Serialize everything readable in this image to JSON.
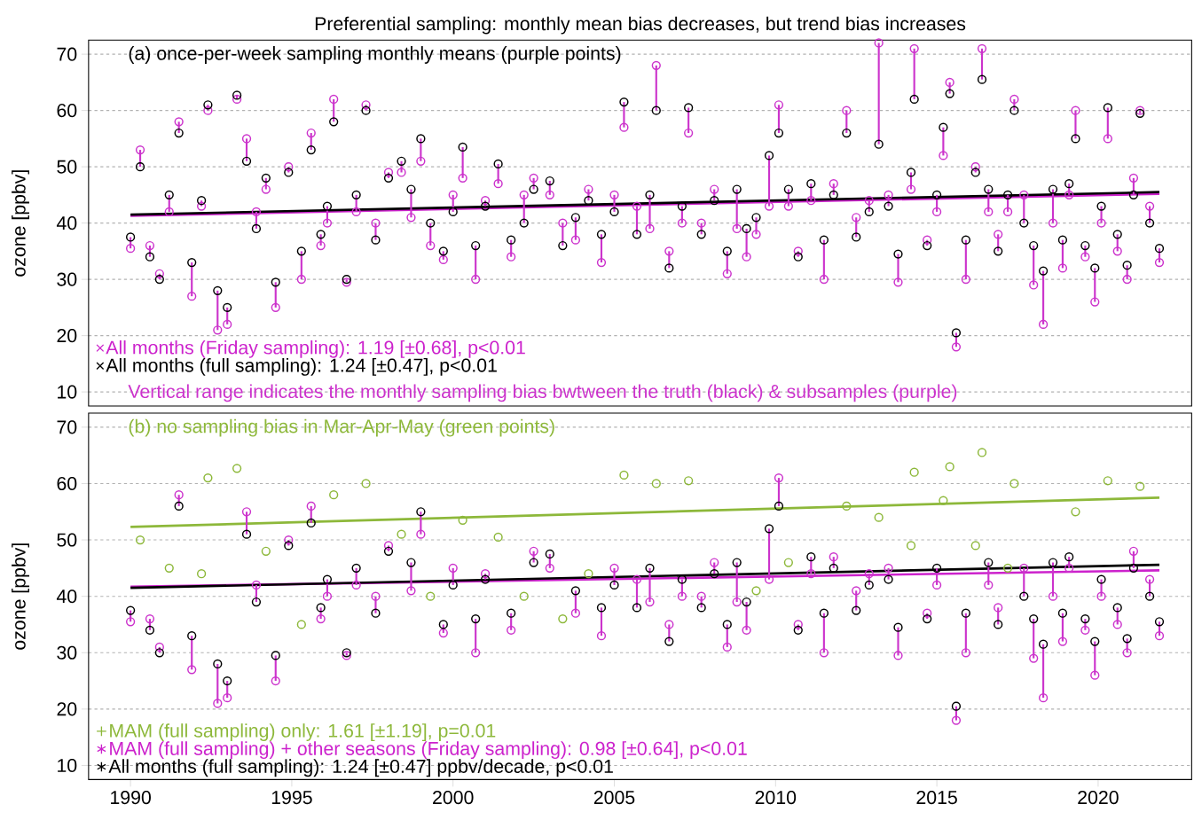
{
  "chart_data": [
    {
      "type": "scatter",
      "title": "Preferential sampling: monthly mean bias decreases, but trend bias increases",
      "subtitle": "(a) once-per-week sampling monthly means (purple points)",
      "ylabel": "ozone [ppbv]",
      "annotations": [
        "Vertical range indicates the monthly sampling bias bwtween the truth (black) & subsamples (purple)"
      ],
      "xlim": [
        1988.7,
        2022.9
      ],
      "ylim": [
        7.5,
        72.5
      ],
      "yticks": [
        10,
        20,
        30,
        40,
        50,
        60,
        70
      ],
      "tick_labels": "y",
      "grid": "y",
      "legend": "bottom left",
      "x": [
        1990.0,
        1990.3,
        1990.6,
        1990.9,
        1991.2,
        1991.5,
        1991.9,
        1992.2,
        1992.4,
        1992.7,
        1993.0,
        1993.3,
        1993.6,
        1993.9,
        1994.2,
        1994.5,
        1994.9,
        1995.3,
        1995.6,
        1995.9,
        1996.1,
        1996.3,
        1996.7,
        1997.0,
        1997.3,
        1997.6,
        1998.0,
        1998.4,
        1998.7,
        1999.0,
        1999.3,
        1999.7,
        2000.0,
        2000.3,
        2000.7,
        2001.0,
        2001.4,
        2001.8,
        2002.2,
        2002.5,
        2003.0,
        2003.4,
        2003.8,
        2004.2,
        2004.6,
        2005.0,
        2005.3,
        2005.7,
        2006.1,
        2006.3,
        2006.7,
        2007.1,
        2007.3,
        2007.7,
        2008.1,
        2008.5,
        2008.8,
        2009.1,
        2009.4,
        2009.8,
        2010.1,
        2010.4,
        2010.7,
        2011.1,
        2011.5,
        2011.8,
        2012.2,
        2012.5,
        2012.9,
        2013.2,
        2013.5,
        2013.8,
        2014.2,
        2014.3,
        2014.7,
        2015.0,
        2015.2,
        2015.4,
        2015.6,
        2015.9,
        2016.2,
        2016.4,
        2016.6,
        2016.9,
        2017.2,
        2017.4,
        2017.7,
        2018.0,
        2018.3,
        2018.6,
        2018.9,
        2019.1,
        2019.3,
        2019.6,
        2019.9,
        2020.1,
        2020.3,
        2020.6,
        2020.9,
        2021.1,
        2021.3,
        2021.6,
        2021.9
      ],
      "series": [
        {
          "marker": "circle",
          "color": "#cc33cc",
          "values": [
            35.5,
            53,
            36,
            31,
            42,
            58,
            27,
            43,
            60,
            21,
            22,
            62,
            55,
            42,
            46,
            25,
            50,
            30,
            56,
            36,
            40,
            62,
            29.5,
            42,
            61,
            40,
            49,
            49,
            41,
            51,
            36,
            33.5,
            45,
            48,
            30,
            44,
            47,
            34,
            45,
            48,
            45,
            40,
            37,
            46,
            33,
            45,
            57,
            43,
            39,
            68,
            35,
            40,
            56,
            40,
            46,
            31,
            39,
            34,
            38,
            43,
            61,
            43,
            35,
            44,
            30,
            47,
            60,
            41,
            44,
            72,
            45,
            29.5,
            46,
            71,
            37,
            42,
            52,
            65,
            18,
            30,
            50,
            71,
            42,
            38,
            42,
            62,
            45,
            29,
            22,
            40,
            32,
            45,
            60,
            34,
            26,
            40,
            55,
            35,
            30,
            48,
            60,
            43,
            33
          ],
          "errors": [
            [
              35.5,
              37.5
            ],
            [
              50,
              53
            ],
            [
              34,
              36
            ],
            [
              30,
              31
            ],
            [
              42,
              45
            ],
            [
              56,
              58
            ],
            [
              27,
              33
            ],
            [
              43,
              44
            ],
            [
              60,
              61
            ],
            [
              21,
              28
            ],
            [
              22,
              25
            ],
            [
              62,
              62.7
            ],
            [
              51,
              55
            ],
            [
              39,
              42
            ],
            [
              46,
              48
            ],
            [
              25,
              29.5
            ],
            [
              49,
              50
            ],
            [
              30,
              35
            ],
            [
              53,
              56
            ],
            [
              36,
              38
            ],
            [
              40,
              43
            ],
            [
              58,
              62
            ],
            [
              29.5,
              30
            ],
            [
              42,
              45
            ],
            [
              60,
              61
            ],
            [
              37,
              40
            ],
            [
              48,
              49
            ],
            [
              49,
              51
            ],
            [
              41,
              46
            ],
            [
              51,
              55
            ],
            [
              36,
              40
            ],
            [
              33.5,
              35
            ],
            [
              42,
              45
            ],
            [
              48,
              53.5
            ],
            [
              30,
              36
            ],
            [
              43,
              44
            ],
            [
              47,
              50.5
            ],
            [
              34,
              37
            ],
            [
              40,
              45
            ],
            [
              46,
              48
            ],
            [
              45,
              47.5
            ],
            [
              36,
              40
            ],
            [
              37,
              41
            ],
            [
              44,
              46
            ],
            [
              33,
              38
            ],
            [
              42,
              45
            ],
            [
              57,
              61.5
            ],
            [
              38,
              43
            ],
            [
              39,
              45
            ],
            [
              60,
              68
            ],
            [
              32,
              35
            ],
            [
              40,
              43
            ],
            [
              56,
              60.5
            ],
            [
              38,
              40
            ],
            [
              44,
              46
            ],
            [
              31,
              35
            ],
            [
              39,
              46
            ],
            [
              34,
              39
            ],
            [
              38,
              41
            ],
            [
              43,
              52
            ],
            [
              56,
              61
            ],
            [
              43,
              46
            ],
            [
              34,
              35
            ],
            [
              44,
              47
            ],
            [
              30,
              37
            ],
            [
              45,
              47
            ],
            [
              56,
              60
            ],
            [
              37.5,
              41
            ],
            [
              42,
              44
            ],
            [
              54,
              72
            ],
            [
              43,
              45
            ],
            [
              29.5,
              34.5
            ],
            [
              46,
              49
            ],
            [
              62,
              71
            ],
            [
              36,
              37
            ],
            [
              42,
              45
            ],
            [
              52,
              57
            ],
            [
              63,
              65
            ],
            [
              18,
              20.5
            ],
            [
              30,
              37
            ],
            [
              49,
              50
            ],
            [
              65.5,
              71
            ],
            [
              42,
              46
            ],
            [
              35,
              38
            ],
            [
              42,
              45
            ],
            [
              60,
              62
            ],
            [
              40,
              45
            ],
            [
              29,
              36
            ],
            [
              22,
              31.5
            ],
            [
              40,
              46
            ],
            [
              32,
              37
            ],
            [
              45,
              47
            ],
            [
              55,
              60
            ],
            [
              34,
              36
            ],
            [
              26,
              32
            ],
            [
              40,
              43
            ],
            [
              55,
              60.5
            ],
            [
              35,
              38
            ],
            [
              30,
              32.5
            ],
            [
              45,
              48
            ],
            [
              59.5,
              60
            ],
            [
              40,
              43
            ],
            [
              33,
              35.5
            ]
          ]
        },
        {
          "marker": "circle",
          "color": "#000000",
          "values": [
            37.5,
            50,
            34,
            30,
            45,
            56,
            33,
            44,
            61,
            28,
            25,
            62.7,
            51,
            39,
            48,
            29.5,
            49,
            35,
            53,
            38,
            43,
            58,
            30,
            45,
            60,
            37,
            48,
            51,
            46,
            55,
            40,
            35,
            42,
            53.5,
            36,
            43,
            50.5,
            37,
            40,
            46,
            47.5,
            36,
            41,
            44,
            38,
            42,
            61.5,
            38,
            45,
            60,
            32,
            43,
            60.5,
            38,
            44,
            35,
            46,
            39,
            41,
            52,
            56,
            46,
            34,
            47,
            37,
            45,
            56,
            37.5,
            42,
            54,
            43,
            34.5,
            49,
            62,
            36,
            45,
            57,
            63,
            20.5,
            37,
            49,
            65.5,
            46,
            35,
            45,
            60,
            40,
            36,
            31.5,
            46,
            37,
            47,
            55,
            36,
            32,
            43,
            60.5,
            38,
            32.5,
            45,
            59.5,
            40,
            35.5
          ]
        },
        {
          "type": "line",
          "name": "All months (Friday sampling): 1.19 [±0.68], p<0.01",
          "color": "#cc22cc",
          "x": [
            1990.0,
            2021.9
          ],
          "values": [
            41.3,
            45.2
          ]
        },
        {
          "type": "line",
          "name": "All months (full sampling): 1.24 [±0.47], p<0.01",
          "color": "#000000",
          "x": [
            1990.0,
            2021.9
          ],
          "values": [
            41.5,
            45.5
          ]
        }
      ]
    },
    {
      "type": "scatter",
      "subtitle": "(b) no sampling bias in Mar-Apr-May (green points)",
      "ylabel": "ozone [ppbv]",
      "xlim": [
        1988.7,
        2022.9
      ],
      "xticks": [
        1990,
        1995,
        2000,
        2005,
        2010,
        2015,
        2020
      ],
      "ylim": [
        7.5,
        72.5
      ],
      "yticks": [
        10,
        20,
        30,
        40,
        50,
        60,
        70
      ],
      "grid": "y",
      "legend": "bottom left",
      "series": [
        {
          "marker": "circle",
          "color": "#cc33cc",
          "x": [
            1990.0,
            1990.6,
            1990.9,
            1991.5,
            1991.9,
            1992.7,
            1993.0,
            1993.6,
            1993.9,
            1994.5,
            1994.9,
            1995.6,
            1995.9,
            1996.1,
            1996.7,
            1997.0,
            1997.6,
            1998.0,
            1998.7,
            1999.0,
            1999.7,
            2000.0,
            2000.7,
            2001.0,
            2001.8,
            2002.5,
            2003.0,
            2003.8,
            2004.6,
            2005.0,
            2005.7,
            2006.1,
            2006.7,
            2007.1,
            2007.7,
            2008.1,
            2008.5,
            2008.8,
            2009.1,
            2009.8,
            2010.1,
            2010.7,
            2011.1,
            2011.5,
            2011.8,
            2012.5,
            2012.9,
            2013.5,
            2013.8,
            2014.7,
            2015.0,
            2015.6,
            2015.9,
            2016.6,
            2016.9,
            2017.7,
            2018.0,
            2018.3,
            2018.6,
            2018.9,
            2019.1,
            2019.6,
            2019.9,
            2020.1,
            2020.6,
            2020.9,
            2021.1,
            2021.6,
            2021.9
          ],
          "values": [
            35.5,
            36,
            31,
            58,
            27,
            21,
            22,
            55,
            42,
            25,
            50,
            56,
            36,
            40,
            29.5,
            42,
            40,
            49,
            41,
            51,
            33.5,
            45,
            30,
            44,
            34,
            48,
            45,
            37,
            33,
            45,
            43,
            39,
            35,
            40,
            40,
            46,
            31,
            39,
            34,
            43,
            61,
            35,
            44,
            30,
            47,
            41,
            44,
            45,
            29.5,
            37,
            42,
            18,
            30,
            42,
            38,
            45,
            29,
            22,
            40,
            32,
            45,
            34,
            26,
            40,
            35,
            30,
            48,
            43,
            33
          ],
          "errors": [
            [
              35.5,
              37.5
            ],
            [
              34,
              36
            ],
            [
              30,
              31
            ],
            [
              56,
              58
            ],
            [
              27,
              33
            ],
            [
              21,
              28
            ],
            [
              22,
              25
            ],
            [
              51,
              55
            ],
            [
              39,
              42
            ],
            [
              25,
              29.5
            ],
            [
              49,
              50
            ],
            [
              53,
              56
            ],
            [
              36,
              38
            ],
            [
              40,
              43
            ],
            [
              29.5,
              30
            ],
            [
              42,
              45
            ],
            [
              37,
              40
            ],
            [
              48,
              49
            ],
            [
              41,
              46
            ],
            [
              51,
              55
            ],
            [
              33.5,
              35
            ],
            [
              42,
              45
            ],
            [
              30,
              36
            ],
            [
              43,
              44
            ],
            [
              34,
              37
            ],
            [
              46,
              48
            ],
            [
              45,
              47.5
            ],
            [
              37,
              41
            ],
            [
              33,
              38
            ],
            [
              42,
              45
            ],
            [
              38,
              43
            ],
            [
              39,
              45
            ],
            [
              32,
              35
            ],
            [
              40,
              43
            ],
            [
              38,
              40
            ],
            [
              44,
              46
            ],
            [
              31,
              35
            ],
            [
              39,
              46
            ],
            [
              34,
              39
            ],
            [
              43,
              52
            ],
            [
              56,
              61
            ],
            [
              34,
              35
            ],
            [
              44,
              47
            ],
            [
              30,
              37
            ],
            [
              45,
              47
            ],
            [
              37.5,
              41
            ],
            [
              42,
              44
            ],
            [
              43,
              45
            ],
            [
              29.5,
              34.5
            ],
            [
              36,
              37
            ],
            [
              42,
              45
            ],
            [
              18,
              20.5
            ],
            [
              30,
              37
            ],
            [
              42,
              46
            ],
            [
              35,
              38
            ],
            [
              40,
              45
            ],
            [
              29,
              36
            ],
            [
              22,
              31.5
            ],
            [
              40,
              46
            ],
            [
              32,
              37
            ],
            [
              45,
              47
            ],
            [
              34,
              36
            ],
            [
              26,
              32
            ],
            [
              40,
              43
            ],
            [
              35,
              38
            ],
            [
              30,
              32.5
            ],
            [
              45,
              48
            ],
            [
              40,
              43
            ],
            [
              33,
              35.5
            ]
          ]
        },
        {
          "marker": "circle",
          "color": "#000000",
          "x": [
            1990.0,
            1990.6,
            1990.9,
            1991.5,
            1991.9,
            1992.7,
            1993.0,
            1993.6,
            1993.9,
            1994.5,
            1994.9,
            1995.6,
            1995.9,
            1996.1,
            1996.7,
            1997.0,
            1997.6,
            1998.0,
            1998.7,
            1999.0,
            1999.7,
            2000.0,
            2000.7,
            2001.0,
            2001.8,
            2002.5,
            2003.0,
            2003.8,
            2004.6,
            2005.0,
            2005.7,
            2006.1,
            2006.7,
            2007.1,
            2007.7,
            2008.1,
            2008.5,
            2008.8,
            2009.1,
            2009.8,
            2010.1,
            2010.7,
            2011.1,
            2011.5,
            2011.8,
            2012.5,
            2012.9,
            2013.5,
            2013.8,
            2014.7,
            2015.0,
            2015.6,
            2015.9,
            2016.6,
            2016.9,
            2017.7,
            2018.0,
            2018.3,
            2018.6,
            2018.9,
            2019.1,
            2019.6,
            2019.9,
            2020.1,
            2020.6,
            2020.9,
            2021.1,
            2021.6,
            2021.9
          ],
          "values": [
            37.5,
            34,
            30,
            56,
            33,
            28,
            25,
            51,
            39,
            29.5,
            49,
            53,
            38,
            43,
            30,
            45,
            37,
            48,
            46,
            55,
            35,
            42,
            36,
            43,
            37,
            46,
            47.5,
            41,
            38,
            42,
            38,
            45,
            32,
            43,
            38,
            44,
            35,
            46,
            39,
            52,
            56,
            34,
            47,
            37,
            45,
            37.5,
            42,
            43,
            34.5,
            36,
            45,
            20.5,
            37,
            46,
            35,
            40,
            36,
            31.5,
            46,
            37,
            47,
            36,
            32,
            43,
            38,
            32.5,
            45,
            40,
            35.5
          ]
        },
        {
          "marker": "circle",
          "color": "#8db83a",
          "x": [
            1990.3,
            1991.2,
            1992.2,
            1992.4,
            1993.3,
            1994.2,
            1995.3,
            1996.3,
            1997.3,
            1998.4,
            1999.3,
            2000.3,
            2001.4,
            2002.2,
            2003.4,
            2004.2,
            2005.3,
            2006.3,
            2007.3,
            2009.4,
            2010.4,
            2012.2,
            2013.2,
            2014.2,
            2014.3,
            2015.2,
            2015.4,
            2016.2,
            2016.4,
            2017.2,
            2017.4,
            2019.3,
            2020.3,
            2021.3
          ],
          "values": [
            50,
            45,
            44,
            61,
            62.7,
            48,
            35,
            58,
            60,
            51,
            40,
            53.5,
            50.5,
            40,
            36,
            44,
            61.5,
            60,
            60.5,
            41,
            46,
            56,
            54,
            49,
            62,
            57,
            63,
            49,
            65.5,
            45,
            60,
            55,
            60.5,
            59.5
          ]
        },
        {
          "type": "line",
          "name": "MAM (full sampling) only: 1.61 [±1.19], p=0.01",
          "color": "#8db83a",
          "x": [
            1990.0,
            2021.9
          ],
          "values": [
            52.3,
            57.5
          ]
        },
        {
          "type": "line",
          "name": "MAM (full sampling) + other seasons (Friday sampling): 0.98 [±0.64], p<0.01",
          "color": "#cc22cc",
          "x": [
            1990.0,
            2021.9
          ],
          "values": [
            41.7,
            44.6
          ]
        },
        {
          "type": "line",
          "name": "All months (full sampling): 1.24 [±0.47] ppbv/decade, p<0.01",
          "color": "#000000",
          "x": [
            1990.0,
            2021.9
          ],
          "values": [
            41.5,
            45.6
          ]
        }
      ]
    }
  ]
}
